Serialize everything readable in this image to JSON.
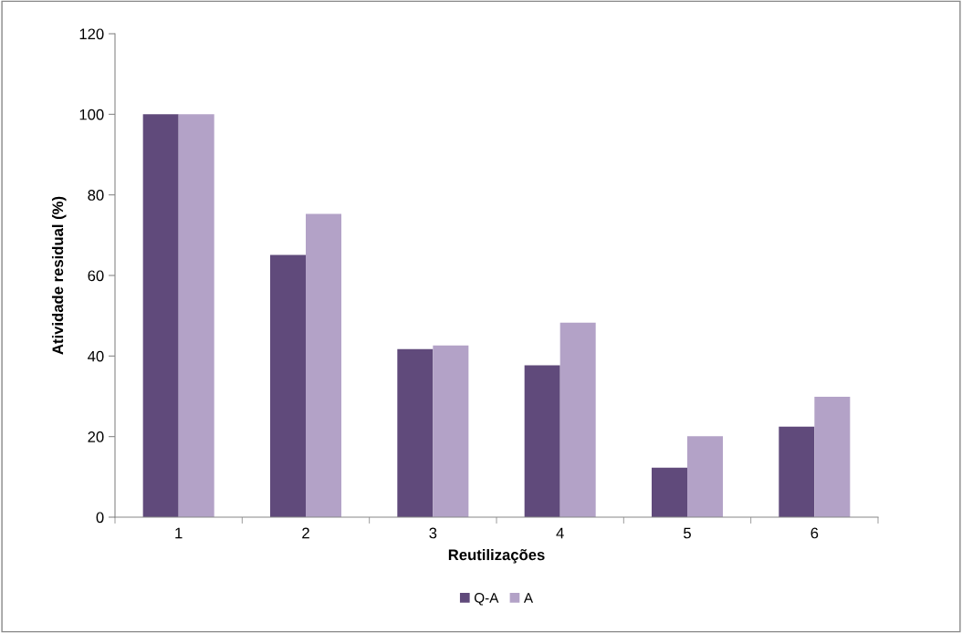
{
  "chart_data": {
    "type": "bar",
    "xlabel": "Reutilizações",
    "ylabel": "Atividade residual (%)",
    "categories": [
      "1",
      "2",
      "3",
      "4",
      "5",
      "6"
    ],
    "series": [
      {
        "name": "Q-A",
        "color": "#604a7b",
        "values": [
          100,
          65.1,
          41.7,
          37.7,
          12.3,
          22.5
        ]
      },
      {
        "name": "A",
        "color": "#b3a2c7",
        "values": [
          100,
          75.3,
          42.6,
          48.3,
          20.1,
          29.9
        ]
      }
    ],
    "ylim": [
      0,
      120
    ],
    "yticks": [
      0,
      20,
      40,
      60,
      80,
      100,
      120
    ],
    "grid": false,
    "legend": "bottom"
  }
}
